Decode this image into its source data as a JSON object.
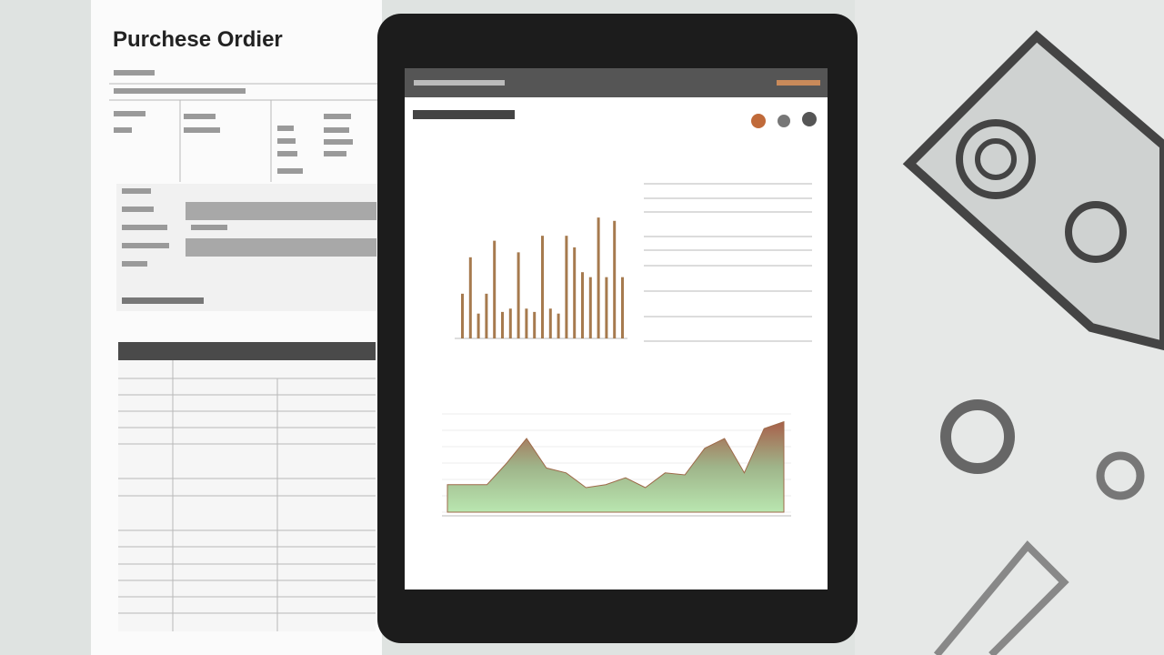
{
  "title": "Purchese Ordier",
  "chart_data": [
    {
      "type": "bar",
      "color": "#a67a4e",
      "ylim": [
        0,
        100
      ],
      "values": [
        27,
        49,
        15,
        27,
        59,
        16,
        18,
        52,
        18,
        16,
        62,
        18,
        15,
        62,
        55,
        40,
        37,
        73,
        37,
        71,
        37
      ]
    },
    {
      "type": "area",
      "color": "#9e6a4a",
      "ylim": [
        0,
        100
      ],
      "values": [
        28,
        28,
        28,
        50,
        75,
        45,
        40,
        25,
        28,
        35,
        25,
        40,
        38,
        65,
        75,
        40,
        85,
        92
      ]
    }
  ]
}
